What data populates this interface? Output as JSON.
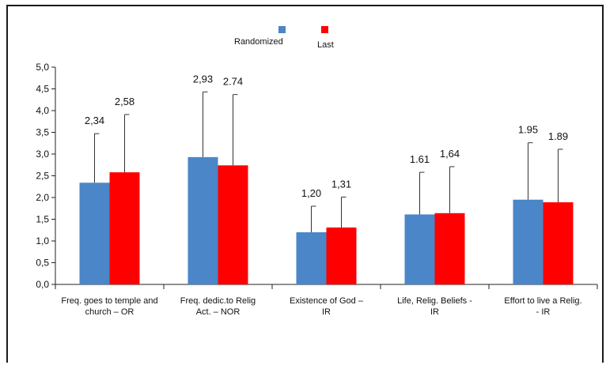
{
  "chart_data": {
    "type": "bar",
    "categories": [
      [
        "Freq. goes to temple and",
        "church – OR"
      ],
      [
        "Freq. dedic.to Relig",
        "Act. – NOR"
      ],
      [
        "Existence of God –",
        "IR"
      ],
      [
        "Life, Relig. Beliefs -",
        "IR"
      ],
      [
        "Effort to live a Relig.",
        "- IR"
      ]
    ],
    "series": [
      {
        "name": "Randomized",
        "color": "#4a86c8",
        "values": [
          2.34,
          2.93,
          1.2,
          1.61,
          1.95
        ],
        "error_upper": [
          3.47,
          4.43,
          1.8,
          2.58,
          3.26
        ],
        "labels": [
          "2,34",
          "2,93",
          "1,20",
          "1.61",
          "1.95"
        ]
      },
      {
        "name": "Last",
        "color": "#ff0000",
        "values": [
          2.58,
          2.74,
          1.31,
          1.64,
          1.89
        ],
        "error_upper": [
          3.91,
          4.37,
          2.01,
          2.71,
          3.11
        ],
        "labels": [
          "2,58",
          "2.74",
          "1,31",
          "1,64",
          "1.89"
        ]
      }
    ],
    "ylim": [
      0,
      5
    ],
    "yticks": [
      "0,0",
      "0,5",
      "1,0",
      "1,5",
      "2,0",
      "2,5",
      "3,0",
      "3,5",
      "4,0",
      "4,5",
      "5,0"
    ],
    "ytick_values": [
      0,
      0.5,
      1,
      1.5,
      2,
      2.5,
      3,
      3.5,
      4,
      4.5,
      5
    ],
    "legend_position": "top-center",
    "grid": false
  }
}
